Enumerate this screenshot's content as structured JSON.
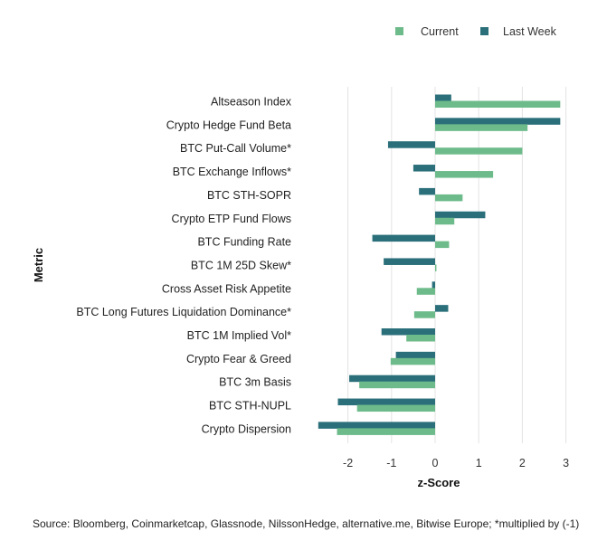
{
  "chart_data": {
    "type": "bar",
    "orientation": "horizontal",
    "xlabel": "z-Score",
    "ylabel": "Metric",
    "xlim": [
      -2.75,
      3.1
    ],
    "xticks": [
      "-2",
      "-1",
      "0",
      "1",
      "2",
      "3"
    ],
    "grid": true,
    "legend_placement": "top-right",
    "categories": [
      "Altseason Index",
      "Crypto Hedge Fund Beta",
      "BTC Put-Call Volume*",
      "BTC Exchange Inflows*",
      "BTC STH-SOPR",
      "Crypto ETP Fund Flows",
      "BTC Funding Rate",
      "BTC 1M 25D Skew*",
      "Cross Asset Risk Appetite",
      "BTC Long Futures Liquidation Dominance*",
      "BTC 1M Implied Vol*",
      "Crypto Fear & Greed",
      "BTC 3m Basis",
      "BTC STH-NUPL",
      "Crypto Dispersion"
    ],
    "series": [
      {
        "name": "Current",
        "color": "#6dbb8a",
        "values": [
          2.87,
          2.12,
          2.0,
          1.33,
          0.63,
          0.44,
          0.32,
          0.03,
          -0.42,
          -0.48,
          -0.66,
          -1.02,
          -1.74,
          -1.79,
          -2.25
        ]
      },
      {
        "name": "Last Week",
        "color": "#2a6f7a",
        "values": [
          0.37,
          2.87,
          -1.08,
          -0.5,
          -0.37,
          1.15,
          -1.44,
          -1.18,
          -0.07,
          0.3,
          -1.23,
          -0.9,
          -1.97,
          -2.23,
          -2.68
        ]
      }
    ]
  },
  "source": "Source: Bloomberg, Coinmarketcap, Glassnode, NilssonHedge, alternative.me, Bitwise Europe; *multiplied by (-1)"
}
